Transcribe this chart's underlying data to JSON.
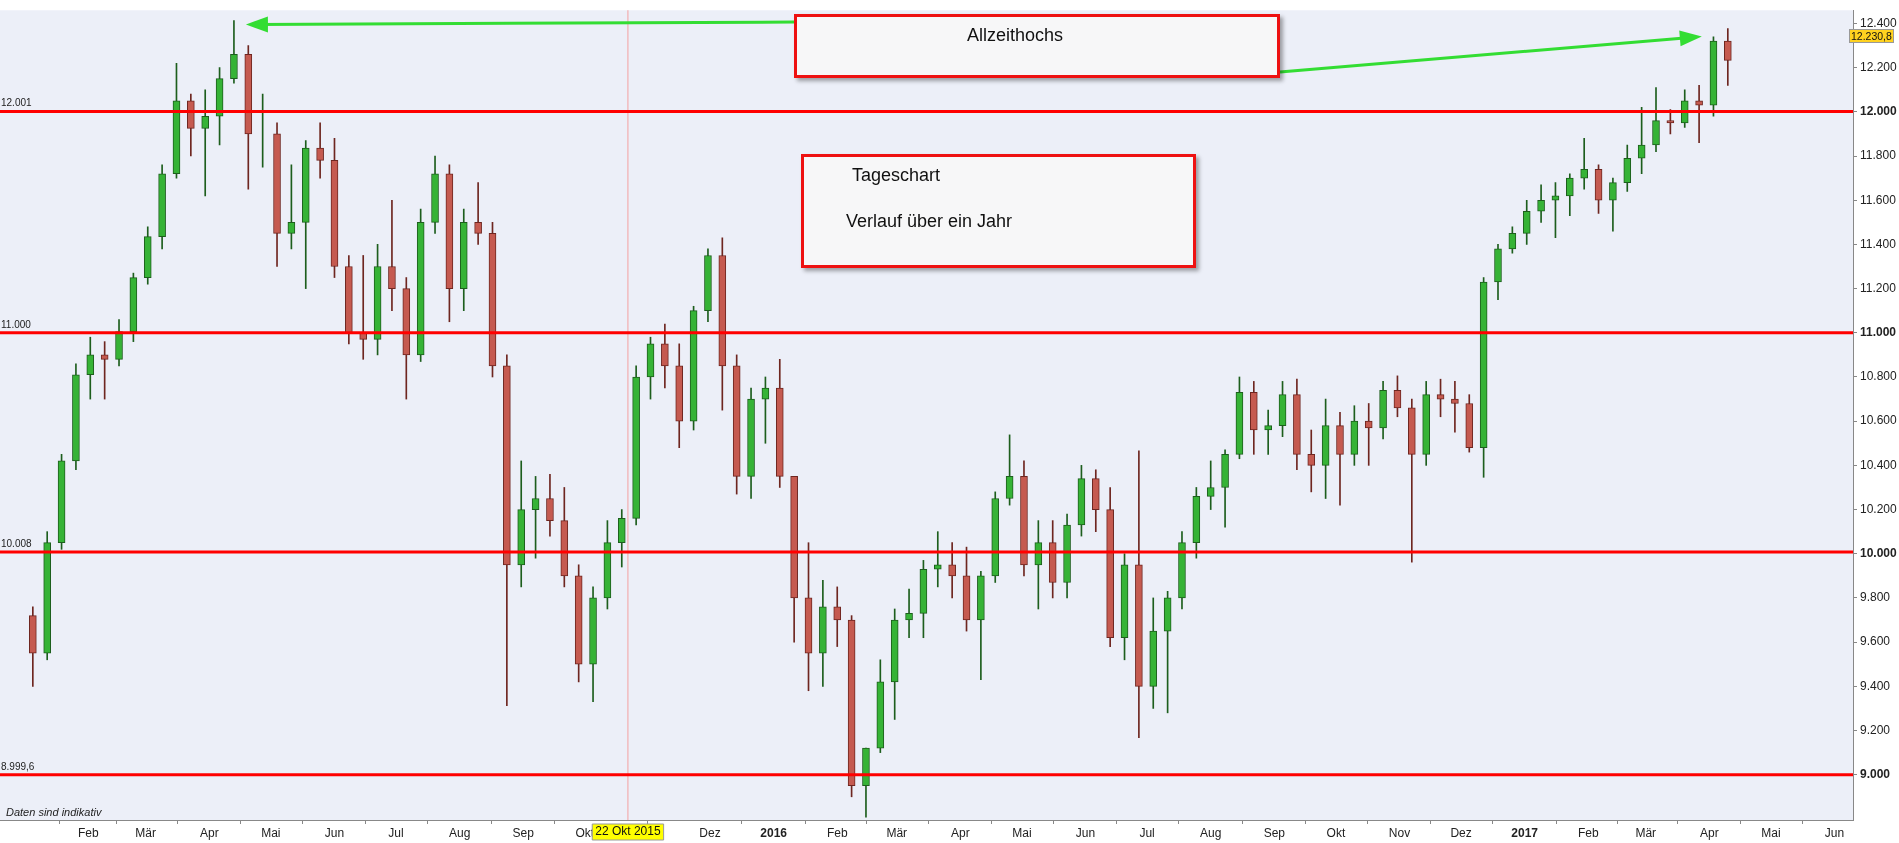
{
  "chart_data": {
    "type": "candlestick",
    "x": [
      "2015-01-05",
      "2015-01-12",
      "2015-01-19",
      "2015-01-26",
      "2015-02-02",
      "2015-02-09",
      "2015-02-16",
      "2015-02-23",
      "2015-03-02",
      "2015-03-09",
      "2015-03-16",
      "2015-03-23",
      "2015-03-30",
      "2015-04-06",
      "2015-04-13",
      "2015-04-20",
      "2015-04-27",
      "2015-05-04",
      "2015-05-11",
      "2015-05-18",
      "2015-05-25",
      "2015-06-01",
      "2015-06-08",
      "2015-06-15",
      "2015-06-22",
      "2015-06-29",
      "2015-07-06",
      "2015-07-13",
      "2015-07-20",
      "2015-07-27",
      "2015-08-03",
      "2015-08-10",
      "2015-08-17",
      "2015-08-24",
      "2015-08-31",
      "2015-09-07",
      "2015-09-14",
      "2015-09-21",
      "2015-09-28",
      "2015-10-05",
      "2015-10-12",
      "2015-10-19",
      "2015-10-26",
      "2015-11-02",
      "2015-11-09",
      "2015-11-16",
      "2015-11-23",
      "2015-11-30",
      "2015-12-07",
      "2015-12-14",
      "2015-12-21",
      "2015-12-28",
      "2016-01-04",
      "2016-01-11",
      "2016-01-18",
      "2016-01-25",
      "2016-02-01",
      "2016-02-08",
      "2016-02-15",
      "2016-02-22",
      "2016-02-29",
      "2016-03-07",
      "2016-03-14",
      "2016-03-21",
      "2016-03-28",
      "2016-04-04",
      "2016-04-11",
      "2016-04-18",
      "2016-04-25",
      "2016-05-02",
      "2016-05-09",
      "2016-05-16",
      "2016-05-23",
      "2016-05-30",
      "2016-06-06",
      "2016-06-13",
      "2016-06-20",
      "2016-06-27",
      "2016-07-04",
      "2016-07-11",
      "2016-07-18",
      "2016-07-25",
      "2016-08-01",
      "2016-08-08",
      "2016-08-15",
      "2016-08-22",
      "2016-08-29",
      "2016-09-05",
      "2016-09-12",
      "2016-09-19",
      "2016-09-26",
      "2016-10-03",
      "2016-10-10",
      "2016-10-17",
      "2016-10-24",
      "2016-10-31",
      "2016-11-07",
      "2016-11-14",
      "2016-11-21",
      "2016-11-28",
      "2016-12-05",
      "2016-12-12",
      "2016-12-19",
      "2016-12-26",
      "2017-01-02",
      "2017-01-09",
      "2017-01-16",
      "2017-01-23",
      "2017-01-30",
      "2017-02-06",
      "2017-02-13",
      "2017-02-20",
      "2017-02-27",
      "2017-03-06",
      "2017-03-13",
      "2017-03-20",
      "2017-03-27",
      "2017-04-03",
      "2017-04-10"
    ],
    "ohlc": [
      [
        9720,
        9760,
        9400,
        9550
      ],
      [
        9550,
        10100,
        9520,
        10050
      ],
      [
        10050,
        10450,
        10020,
        10420
      ],
      [
        10420,
        10860,
        10380,
        10810
      ],
      [
        10810,
        10980,
        10700,
        10900
      ],
      [
        10900,
        10960,
        10700,
        10880
      ],
      [
        10880,
        11060,
        10850,
        11005
      ],
      [
        11005,
        11270,
        10960,
        11250
      ],
      [
        11250,
        11480,
        11220,
        11435
      ],
      [
        11435,
        11760,
        11380,
        11720
      ],
      [
        11720,
        12220,
        11700,
        12050
      ],
      [
        12050,
        12080,
        11800,
        11925
      ],
      [
        11925,
        12100,
        11620,
        11980
      ],
      [
        11980,
        12200,
        11850,
        12150
      ],
      [
        12150,
        12413,
        12130,
        12260
      ],
      [
        12260,
        12300,
        11650,
        11900
      ],
      [
        11900,
        12080,
        11750,
        11900
      ],
      [
        11900,
        11950,
        11300,
        11450
      ],
      [
        11450,
        11760,
        11380,
        11500
      ],
      [
        11500,
        11870,
        11200,
        11836
      ],
      [
        11836,
        11950,
        11700,
        11780
      ],
      [
        11780,
        11880,
        11250,
        11300
      ],
      [
        11300,
        11350,
        10950,
        11000
      ],
      [
        11000,
        11350,
        10880,
        10970
      ],
      [
        10970,
        11400,
        10900,
        11300
      ],
      [
        11300,
        11600,
        11100,
        11200
      ],
      [
        11200,
        11250,
        10700,
        10900
      ],
      [
        10900,
        11560,
        10870,
        11500
      ],
      [
        11500,
        11800,
        11450,
        11720
      ],
      [
        11720,
        11760,
        11050,
        11200
      ],
      [
        11200,
        11560,
        11100,
        11500
      ],
      [
        11500,
        11680,
        11400,
        11450
      ],
      [
        11450,
        11500,
        10800,
        10850
      ],
      [
        10850,
        10900,
        9312,
        9950
      ],
      [
        9950,
        10420,
        9850,
        10200
      ],
      [
        10200,
        10350,
        9980,
        10250
      ],
      [
        10250,
        10360,
        10080,
        10150
      ],
      [
        10150,
        10300,
        9850,
        9900
      ],
      [
        9900,
        9950,
        9420,
        9500
      ],
      [
        9500,
        9850,
        9330,
        9800
      ],
      [
        9800,
        10150,
        9750,
        10050
      ],
      [
        10050,
        10200,
        9940,
        10160
      ],
      [
        10160,
        10850,
        10130,
        10800
      ],
      [
        10800,
        10980,
        10700,
        10950
      ],
      [
        10950,
        11040,
        10750,
        10850
      ],
      [
        10850,
        10950,
        10480,
        10600
      ],
      [
        10600,
        11120,
        10560,
        11100
      ],
      [
        11100,
        11380,
        11050,
        11350
      ],
      [
        11350,
        11430,
        10650,
        10850
      ],
      [
        10850,
        10900,
        10270,
        10350
      ],
      [
        10350,
        10750,
        10250,
        10700
      ],
      [
        10700,
        10800,
        10500,
        10750
      ],
      [
        10750,
        10880,
        10300,
        10350
      ],
      [
        10350,
        10350,
        9600,
        9800
      ],
      [
        9800,
        10050,
        9380,
        9550
      ],
      [
        9550,
        9880,
        9400,
        9760
      ],
      [
        9760,
        9850,
        9580,
        9700
      ],
      [
        9700,
        9720,
        8900,
        8950
      ],
      [
        8950,
        9120,
        8808,
        9120
      ],
      [
        9120,
        9520,
        9100,
        9420
      ],
      [
        9420,
        9750,
        9250,
        9700
      ],
      [
        9700,
        9840,
        9620,
        9730
      ],
      [
        9730,
        9970,
        9620,
        9930
      ],
      [
        9930,
        10100,
        9850,
        9950
      ],
      [
        9950,
        10050,
        9800,
        9900
      ],
      [
        9900,
        10030,
        9650,
        9700
      ],
      [
        9700,
        9920,
        9430,
        9900
      ],
      [
        9900,
        10280,
        9870,
        10250
      ],
      [
        10250,
        10538,
        10220,
        10350
      ],
      [
        10350,
        10420,
        9900,
        9950
      ],
      [
        9950,
        10150,
        9750,
        10050
      ],
      [
        10050,
        10150,
        9800,
        9870
      ],
      [
        9870,
        10180,
        9800,
        10130
      ],
      [
        10130,
        10400,
        10080,
        10340
      ],
      [
        10340,
        10380,
        10100,
        10200
      ],
      [
        10200,
        10300,
        9580,
        9620
      ],
      [
        9620,
        10000,
        9520,
        9950
      ],
      [
        9950,
        10466,
        9168,
        9400
      ],
      [
        9400,
        9800,
        9300,
        9650
      ],
      [
        9650,
        9830,
        9280,
        9800
      ],
      [
        9800,
        10100,
        9750,
        10050
      ],
      [
        10050,
        10300,
        9980,
        10260
      ],
      [
        10260,
        10420,
        10200,
        10300
      ],
      [
        10300,
        10470,
        10120,
        10450
      ],
      [
        10450,
        10800,
        10430,
        10730
      ],
      [
        10730,
        10780,
        10450,
        10560
      ],
      [
        10560,
        10650,
        10450,
        10580
      ],
      [
        10580,
        10780,
        10530,
        10720
      ],
      [
        10720,
        10790,
        10380,
        10450
      ],
      [
        10450,
        10560,
        10280,
        10400
      ],
      [
        10400,
        10700,
        10250,
        10580
      ],
      [
        10580,
        10640,
        10220,
        10450
      ],
      [
        10450,
        10670,
        10400,
        10600
      ],
      [
        10600,
        10680,
        10400,
        10570
      ],
      [
        10570,
        10780,
        10520,
        10740
      ],
      [
        10740,
        10805,
        10620,
        10660
      ],
      [
        10660,
        10700,
        9962,
        10450
      ],
      [
        10450,
        10780,
        10400,
        10720
      ],
      [
        10720,
        10790,
        10620,
        10700
      ],
      [
        10700,
        10780,
        10550,
        10680
      ],
      [
        10680,
        10720,
        10460,
        10480
      ],
      [
        10480,
        11250,
        10346,
        11230
      ],
      [
        11230,
        11400,
        11150,
        11380
      ],
      [
        11380,
        11480,
        11360,
        11450
      ],
      [
        11450,
        11600,
        11400,
        11550
      ],
      [
        11550,
        11670,
        11500,
        11600
      ],
      [
        11600,
        11680,
        11430,
        11620
      ],
      [
        11620,
        11720,
        11530,
        11700
      ],
      [
        11700,
        11880,
        11650,
        11740
      ],
      [
        11740,
        11760,
        11540,
        11600
      ],
      [
        11600,
        11700,
        11460,
        11680
      ],
      [
        11680,
        11850,
        11640,
        11790
      ],
      [
        11790,
        12020,
        11720,
        11850
      ],
      [
        11850,
        12110,
        11820,
        11960
      ],
      [
        11960,
        12010,
        11900,
        11950
      ],
      [
        11950,
        12100,
        11930,
        12050
      ],
      [
        12050,
        12120,
        11860,
        12030
      ],
      [
        12030,
        12340,
        11980,
        12320
      ],
      [
        12320,
        12377,
        12120,
        12233
      ]
    ],
    "xlim": [
      "2014-12-20",
      "2017-06-10"
    ],
    "xticks": [
      {
        "value": "2015-02-01",
        "label": "Feb"
      },
      {
        "value": "2015-03-01",
        "label": "Mär"
      },
      {
        "value": "2015-04-01",
        "label": "Apr"
      },
      {
        "value": "2015-05-01",
        "label": "Mai"
      },
      {
        "value": "2015-06-01",
        "label": "Jun"
      },
      {
        "value": "2015-07-01",
        "label": "Jul"
      },
      {
        "value": "2015-08-01",
        "label": "Aug"
      },
      {
        "value": "2015-09-01",
        "label": "Sep"
      },
      {
        "value": "2015-10-01",
        "label": "Okt"
      },
      {
        "value": "2015-12-01",
        "label": "Dez"
      },
      {
        "value": "2016-01-01",
        "label": "2016"
      },
      {
        "value": "2016-02-01",
        "label": "Feb"
      },
      {
        "value": "2016-03-01",
        "label": "Mär"
      },
      {
        "value": "2016-04-01",
        "label": "Apr"
      },
      {
        "value": "2016-05-01",
        "label": "Mai"
      },
      {
        "value": "2016-06-01",
        "label": "Jun"
      },
      {
        "value": "2016-07-01",
        "label": "Jul"
      },
      {
        "value": "2016-08-01",
        "label": "Aug"
      },
      {
        "value": "2016-09-01",
        "label": "Sep"
      },
      {
        "value": "2016-10-01",
        "label": "Okt"
      },
      {
        "value": "2016-11-01",
        "label": "Nov"
      },
      {
        "value": "2016-12-01",
        "label": "Dez"
      },
      {
        "value": "2017-01-01",
        "label": "2017"
      },
      {
        "value": "2017-02-01",
        "label": "Feb"
      },
      {
        "value": "2017-03-01",
        "label": "Mär"
      },
      {
        "value": "2017-04-01",
        "label": "Apr"
      },
      {
        "value": "2017-05-01",
        "label": "Mai"
      },
      {
        "value": "2017-06-01",
        "label": "Jun"
      }
    ],
    "ylim": [
      8795,
      12460
    ],
    "yticks": [
      {
        "value": 9000,
        "label": "9.000"
      },
      {
        "value": 9200,
        "label": "9.200"
      },
      {
        "value": 9400,
        "label": "9.400"
      },
      {
        "value": 9600,
        "label": "9.600"
      },
      {
        "value": 9800,
        "label": "9.800"
      },
      {
        "value": 10000,
        "label": "10.000"
      },
      {
        "value": 10200,
        "label": "10.200"
      },
      {
        "value": 10400,
        "label": "10.400"
      },
      {
        "value": 10600,
        "label": "10.600"
      },
      {
        "value": 10800,
        "label": "10.800"
      },
      {
        "value": 11000,
        "label": "11.000"
      },
      {
        "value": 11200,
        "label": "11.200"
      },
      {
        "value": 11400,
        "label": "11.400"
      },
      {
        "value": 11600,
        "label": "11.600"
      },
      {
        "value": 11800,
        "label": "11.800"
      },
      {
        "value": 12000,
        "label": "12.000"
      },
      {
        "value": 12200,
        "label": "12.200"
      },
      {
        "value": 12400,
        "label": "12.400"
      }
    ],
    "ref_lines": [
      {
        "axis": "y",
        "value": 12001,
        "label": "12.001",
        "color": "#ff0000"
      },
      {
        "axis": "y",
        "value": 11000,
        "label": "11.000",
        "color": "#ff0000"
      },
      {
        "axis": "y",
        "value": 10008,
        "label": "10.008",
        "color": "#ff0000"
      },
      {
        "axis": "y",
        "value": 8999.6,
        "label": "8.999,6",
        "color": "#ff0000"
      },
      {
        "axis": "x",
        "value": "2015-10-22",
        "label": "22 Okt 2015",
        "color": "#f4a0a0"
      }
    ],
    "annotations": [
      "Allzeithochs",
      "Tageschart",
      "Verlauf über ein Jahr",
      "Daten sind indikativ",
      "12.230,8"
    ],
    "grid": false,
    "legend": false
  }
}
